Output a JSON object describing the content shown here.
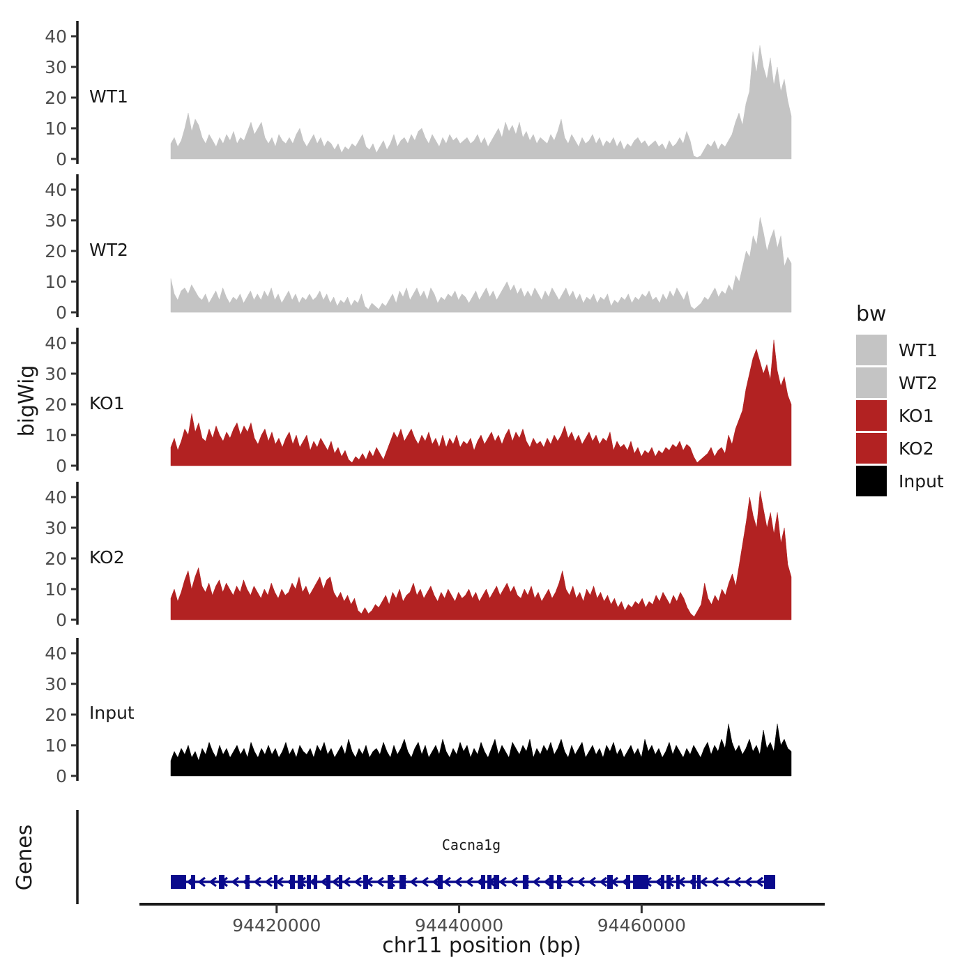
{
  "figure": {
    "ylab": "bigWig",
    "xlab": "chr11 position (bp)",
    "genes_label": "Genes"
  },
  "legend": {
    "title": "bw",
    "entries": [
      {
        "label": "WT1",
        "color": "#C4C4C4"
      },
      {
        "label": "WT2",
        "color": "#C4C4C4"
      },
      {
        "label": "KO1",
        "color": "#B22222"
      },
      {
        "label": "KO2",
        "color": "#B22222"
      },
      {
        "label": "Input",
        "color": "#000000"
      }
    ]
  },
  "chart_data": {
    "type": "area",
    "region": {
      "chrom": "chr11",
      "start": 94408400,
      "end": 94476400
    },
    "x_ticks": [
      94420000,
      94440000,
      94460000
    ],
    "y_ticks": [
      0,
      10,
      20,
      30,
      40
    ],
    "ylim": [
      0,
      45
    ],
    "xlabel": "chr11 position (bp)",
    "ylabel": "bigWig",
    "grid": false,
    "legend_position": "right",
    "tracks": [
      {
        "name": "WT1",
        "color": "#C4C4C4",
        "values": [
          5,
          7,
          4,
          6,
          10,
          15,
          9,
          13,
          11,
          7,
          5,
          8,
          6,
          4,
          7,
          5,
          8,
          6,
          9,
          5,
          7,
          6,
          9,
          12,
          8,
          10,
          12,
          7,
          5,
          7,
          4,
          8,
          6,
          5,
          7,
          5,
          8,
          10,
          6,
          4,
          6,
          8,
          5,
          7,
          4,
          6,
          5,
          3,
          5,
          2,
          4,
          3,
          5,
          4,
          6,
          8,
          4,
          3,
          5,
          2,
          4,
          6,
          3,
          5,
          8,
          4,
          6,
          7,
          5,
          8,
          6,
          9,
          10,
          7,
          5,
          8,
          6,
          4,
          7,
          5,
          8,
          6,
          7,
          5,
          6,
          7,
          5,
          6,
          8,
          5,
          7,
          4,
          6,
          8,
          10,
          7,
          12,
          9,
          11,
          8,
          12,
          7,
          9,
          6,
          8,
          5,
          7,
          6,
          5,
          8,
          6,
          9,
          13,
          7,
          5,
          8,
          6,
          4,
          7,
          5,
          6,
          8,
          5,
          7,
          4,
          6,
          5,
          7,
          4,
          6,
          3,
          5,
          4,
          6,
          7,
          5,
          6,
          4,
          5,
          6,
          4,
          5,
          3,
          6,
          4,
          5,
          7,
          5,
          9,
          6,
          1,
          0.5,
          1,
          3,
          5,
          4,
          6,
          3,
          5,
          4,
          6,
          8,
          12,
          15,
          11,
          18,
          22,
          35,
          28,
          37,
          30,
          26,
          33,
          24,
          30,
          22,
          26,
          19,
          14
        ]
      },
      {
        "name": "WT2",
        "color": "#C4C4C4",
        "values": [
          11,
          6,
          4,
          7,
          8,
          6,
          9,
          7,
          5,
          4,
          6,
          3,
          5,
          7,
          4,
          8,
          5,
          3,
          5,
          4,
          6,
          3,
          5,
          7,
          4,
          6,
          4,
          7,
          5,
          8,
          4,
          6,
          3,
          5,
          7,
          4,
          6,
          3,
          5,
          4,
          6,
          4,
          5,
          7,
          4,
          6,
          3,
          5,
          2,
          4,
          3,
          5,
          2,
          4,
          3,
          6,
          2,
          1,
          3,
          2,
          1,
          3,
          2,
          4,
          6,
          3,
          7,
          5,
          8,
          4,
          6,
          8,
          5,
          7,
          4,
          8,
          6,
          3,
          5,
          4,
          6,
          5,
          7,
          4,
          6,
          5,
          3,
          5,
          7,
          4,
          6,
          8,
          5,
          7,
          4,
          6,
          8,
          10,
          7,
          9,
          6,
          8,
          5,
          7,
          5,
          8,
          6,
          4,
          7,
          5,
          8,
          6,
          4,
          6,
          8,
          5,
          7,
          4,
          6,
          3,
          5,
          4,
          6,
          3,
          5,
          4,
          6,
          2,
          4,
          3,
          5,
          4,
          6,
          3,
          5,
          4,
          6,
          5,
          7,
          4,
          5,
          3,
          6,
          4,
          7,
          5,
          8,
          6,
          4,
          7,
          2,
          1,
          2,
          3,
          5,
          4,
          6,
          8,
          5,
          7,
          6,
          9,
          7,
          12,
          10,
          15,
          20,
          18,
          25,
          22,
          31,
          26,
          20,
          24,
          27,
          21,
          25,
          15,
          18,
          16
        ]
      },
      {
        "name": "KO1",
        "color": "#B22222",
        "values": [
          6,
          9,
          5,
          8,
          12,
          10,
          17,
          11,
          14,
          9,
          8,
          12,
          9,
          13,
          10,
          8,
          11,
          9,
          12,
          14,
          10,
          13,
          11,
          14,
          9,
          7,
          10,
          12,
          8,
          11,
          7,
          9,
          6,
          9,
          11,
          7,
          10,
          6,
          8,
          10,
          5,
          8,
          6,
          9,
          7,
          5,
          8,
          4,
          6,
          3,
          5,
          2,
          1,
          3,
          2,
          4,
          2,
          5,
          3,
          6,
          4,
          2,
          5,
          8,
          11,
          9,
          12,
          8,
          10,
          12,
          9,
          7,
          10,
          8,
          11,
          7,
          9,
          6,
          10,
          6,
          9,
          7,
          10,
          6,
          8,
          7,
          9,
          5,
          8,
          10,
          7,
          9,
          11,
          8,
          10,
          7,
          10,
          12,
          8,
          11,
          9,
          12,
          8,
          6,
          9,
          7,
          8,
          6,
          9,
          7,
          10,
          8,
          10,
          13,
          9,
          11,
          8,
          10,
          7,
          9,
          11,
          8,
          10,
          7,
          9,
          8,
          11,
          5,
          8,
          6,
          7,
          5,
          8,
          4,
          6,
          3,
          5,
          4,
          6,
          3,
          5,
          4,
          6,
          5,
          7,
          6,
          8,
          5,
          7,
          6,
          3,
          1,
          2,
          3,
          4,
          6,
          3,
          5,
          6,
          4,
          10,
          7,
          12,
          15,
          18,
          25,
          30,
          35,
          38,
          34,
          30,
          33,
          28,
          41,
          31,
          26,
          29,
          23,
          20
        ]
      },
      {
        "name": "KO2",
        "color": "#B22222",
        "values": [
          7,
          10,
          6,
          9,
          13,
          16,
          10,
          14,
          17,
          11,
          9,
          12,
          8,
          11,
          13,
          9,
          12,
          10,
          8,
          11,
          9,
          13,
          10,
          8,
          11,
          9,
          7,
          10,
          8,
          12,
          9,
          7,
          10,
          8,
          9,
          12,
          10,
          14,
          9,
          11,
          8,
          10,
          12,
          14,
          10,
          13,
          14,
          9,
          7,
          9,
          6,
          8,
          5,
          7,
          3,
          2,
          4,
          2,
          3,
          5,
          4,
          6,
          8,
          5,
          9,
          7,
          10,
          6,
          8,
          9,
          12,
          8,
          10,
          7,
          9,
          11,
          8,
          6,
          9,
          7,
          10,
          8,
          6,
          9,
          7,
          8,
          10,
          7,
          9,
          6,
          8,
          10,
          7,
          9,
          11,
          8,
          10,
          12,
          9,
          11,
          8,
          7,
          10,
          8,
          11,
          7,
          9,
          6,
          8,
          10,
          7,
          9,
          12,
          16,
          10,
          8,
          11,
          7,
          9,
          6,
          10,
          8,
          11,
          7,
          9,
          6,
          8,
          5,
          7,
          4,
          6,
          3,
          5,
          4,
          6,
          5,
          7,
          4,
          6,
          5,
          8,
          6,
          9,
          7,
          5,
          8,
          6,
          9,
          7,
          4,
          2,
          1,
          3,
          5,
          12,
          7,
          5,
          8,
          6,
          10,
          8,
          12,
          15,
          11,
          18,
          25,
          32,
          40,
          34,
          30,
          42,
          36,
          30,
          35,
          28,
          35,
          25,
          30,
          18,
          14
        ]
      },
      {
        "name": "Input",
        "color": "#000000",
        "values": [
          5,
          8,
          6,
          9,
          7,
          10,
          6,
          8,
          5,
          9,
          7,
          11,
          8,
          6,
          10,
          7,
          9,
          6,
          8,
          10,
          7,
          9,
          6,
          11,
          8,
          6,
          9,
          7,
          10,
          7,
          9,
          6,
          8,
          11,
          7,
          9,
          6,
          10,
          8,
          7,
          9,
          6,
          10,
          8,
          11,
          7,
          9,
          6,
          8,
          10,
          7,
          12,
          8,
          6,
          9,
          7,
          10,
          6,
          8,
          9,
          7,
          11,
          8,
          6,
          10,
          7,
          9,
          12,
          8,
          6,
          9,
          11,
          7,
          10,
          6,
          8,
          10,
          7,
          12,
          8,
          6,
          9,
          7,
          11,
          8,
          10,
          6,
          9,
          7,
          11,
          8,
          6,
          9,
          12,
          7,
          10,
          8,
          6,
          11,
          9,
          7,
          10,
          8,
          12,
          6,
          9,
          7,
          10,
          8,
          11,
          7,
          9,
          12,
          8,
          6,
          10,
          7,
          9,
          11,
          6,
          8,
          10,
          7,
          9,
          6,
          10,
          8,
          11,
          7,
          9,
          6,
          8,
          10,
          7,
          9,
          6,
          12,
          8,
          10,
          7,
          9,
          6,
          8,
          11,
          7,
          10,
          8,
          6,
          9,
          7,
          10,
          8,
          6,
          9,
          11,
          7,
          10,
          8,
          12,
          9,
          17,
          11,
          8,
          10,
          7,
          9,
          12,
          8,
          10,
          7,
          15,
          9,
          11,
          8,
          17,
          10,
          12,
          9,
          8
        ]
      }
    ],
    "gene_track": {
      "label": "Genes",
      "gene": {
        "name": "Cacna1g",
        "strand": "-",
        "start": 94408400,
        "end": 94474640,
        "color": "#0A0A8C",
        "exons": [
          [
            94408400,
            94410080
          ],
          [
            94410620,
            94411070
          ],
          [
            94413670,
            94414280
          ],
          [
            94416580,
            94417030
          ],
          [
            94419710,
            94420090
          ],
          [
            94421470,
            94422000
          ],
          [
            94422310,
            94422920
          ],
          [
            94423300,
            94423760
          ],
          [
            94424060,
            94424450
          ],
          [
            94425440,
            94425900
          ],
          [
            94426810,
            94427200
          ],
          [
            94429490,
            94430020
          ],
          [
            94432160,
            94432770
          ],
          [
            94433460,
            94434150
          ],
          [
            94437660,
            94438200
          ],
          [
            94442400,
            94442860
          ],
          [
            94443090,
            94443550
          ],
          [
            94443780,
            94444390
          ],
          [
            94446980,
            94447600
          ],
          [
            94449890,
            94450350
          ],
          [
            94450730,
            94451190
          ],
          [
            94456230,
            94456840
          ],
          [
            94458290,
            94458750
          ],
          [
            94459060,
            94460740
          ],
          [
            94462110,
            94462490
          ],
          [
            94462720,
            94463180
          ],
          [
            94463790,
            94464170
          ],
          [
            94465550,
            94465930
          ],
          [
            94466080,
            94466470
          ],
          [
            94473420,
            94474640
          ]
        ]
      }
    }
  }
}
